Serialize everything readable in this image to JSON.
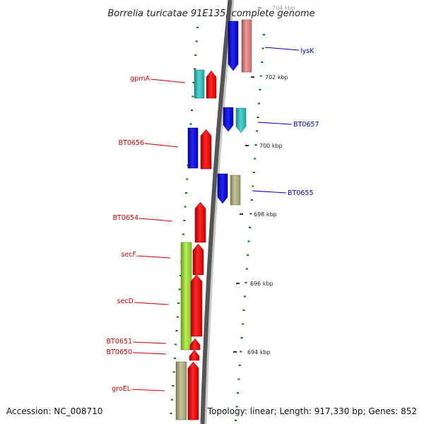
{
  "title": "Borrelia turicatae 91E135, complete genome",
  "accession": "Accession: NC_008710",
  "summary": "Topology: linear; Length: 917,330 bp; Genes: 852",
  "ruler_labels": [
    "704 kbp",
    "702 kbp",
    "700 kbp",
    "698 kbp",
    "696 kbp",
    "694 kbp"
  ],
  "colors": {
    "reverse_label": "#cc0000",
    "forward_label": "#0000cc",
    "tick": "#007700",
    "backbone": "#888888",
    "red": "#ff0000",
    "blue": "#0000ee",
    "cyan": "#33cccc",
    "pink": "#ee8888",
    "lime": "#aaee33",
    "khaki": "#bbbb88"
  },
  "reverse_genes": [
    {
      "label": "gpmA",
      "row": "gpmA"
    },
    {
      "label": "BT0656",
      "row": "BT0656"
    },
    {
      "label": "BT0654",
      "row": "BT0654"
    },
    {
      "label": "secF",
      "row": "secF"
    },
    {
      "label": "secD",
      "row": "secD"
    },
    {
      "label": "BT0651",
      "row": "BT0651"
    },
    {
      "label": "BT0650",
      "row": "BT0650"
    },
    {
      "label": "groEL",
      "row": "groEL"
    }
  ],
  "forward_genes": [
    {
      "label": "lysK",
      "row": "lysK"
    },
    {
      "label": "BT0657",
      "row": "BT0657"
    },
    {
      "label": "BT0655",
      "row": "BT0655"
    }
  ],
  "icons": {
    "reverse_track": "gene-arrow-icon",
    "forward_track": "gene-arrow-icon"
  }
}
